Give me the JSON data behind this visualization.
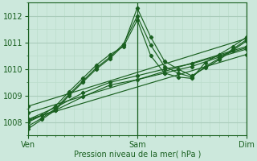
{
  "xlabel": "Pression niveau de la mer( hPa )",
  "bg_color": "#cce8dc",
  "grid_major_color": "#aaccbb",
  "grid_minor_color": "#bbddcc",
  "line_color": "#1a6020",
  "xlim": [
    0,
    48
  ],
  "ylim": [
    1007.5,
    1012.5
  ],
  "yticks": [
    1008,
    1009,
    1010,
    1011,
    1012
  ],
  "xtick_positions": [
    0,
    24,
    48
  ],
  "xtick_labels": [
    "Ven",
    "Sam",
    "Dim"
  ],
  "series": [
    {
      "x": [
        0,
        3,
        6,
        9,
        12,
        15,
        18,
        21,
        24,
        27,
        30,
        33,
        36,
        39,
        42,
        45,
        48
      ],
      "y": [
        1007.75,
        1008.1,
        1008.45,
        1009.0,
        1009.5,
        1010.0,
        1010.4,
        1010.9,
        1012.3,
        1011.2,
        1010.3,
        1010.0,
        1009.75,
        1010.05,
        1010.35,
        1010.7,
        1011.05
      ]
    },
    {
      "x": [
        0,
        3,
        6,
        9,
        12,
        15,
        18,
        21,
        24,
        27,
        30,
        33,
        36,
        39,
        42,
        45,
        48
      ],
      "y": [
        1007.85,
        1008.15,
        1008.5,
        1009.05,
        1009.55,
        1010.05,
        1010.45,
        1010.95,
        1012.0,
        1010.9,
        1010.1,
        1009.85,
        1009.7,
        1010.1,
        1010.4,
        1010.75,
        1011.1
      ]
    },
    {
      "x": [
        0,
        3,
        6,
        9,
        12,
        15,
        18,
        21,
        24,
        27,
        30,
        33,
        36,
        39,
        42,
        45,
        48
      ],
      "y": [
        1008.0,
        1008.25,
        1008.6,
        1009.15,
        1009.65,
        1010.15,
        1010.55,
        1010.85,
        1011.85,
        1010.5,
        1009.85,
        1009.7,
        1009.65,
        1010.25,
        1010.55,
        1010.85,
        1011.2
      ]
    },
    {
      "x": [
        0,
        6,
        12,
        18,
        24,
        30,
        36,
        42,
        48
      ],
      "y": [
        1008.1,
        1008.55,
        1009.1,
        1009.5,
        1009.75,
        1010.0,
        1010.2,
        1010.5,
        1010.8
      ]
    },
    {
      "x": [
        0,
        6,
        12,
        18,
        24,
        30,
        36,
        42,
        48
      ],
      "y": [
        1008.05,
        1008.45,
        1008.95,
        1009.4,
        1009.6,
        1009.85,
        1010.1,
        1010.45,
        1010.75
      ]
    },
    {
      "x": [
        0,
        48
      ],
      "y": [
        1008.6,
        1011.15
      ]
    },
    {
      "x": [
        0,
        48
      ],
      "y": [
        1008.35,
        1010.85
      ]
    },
    {
      "x": [
        0,
        48
      ],
      "y": [
        1008.1,
        1010.55
      ]
    }
  ]
}
